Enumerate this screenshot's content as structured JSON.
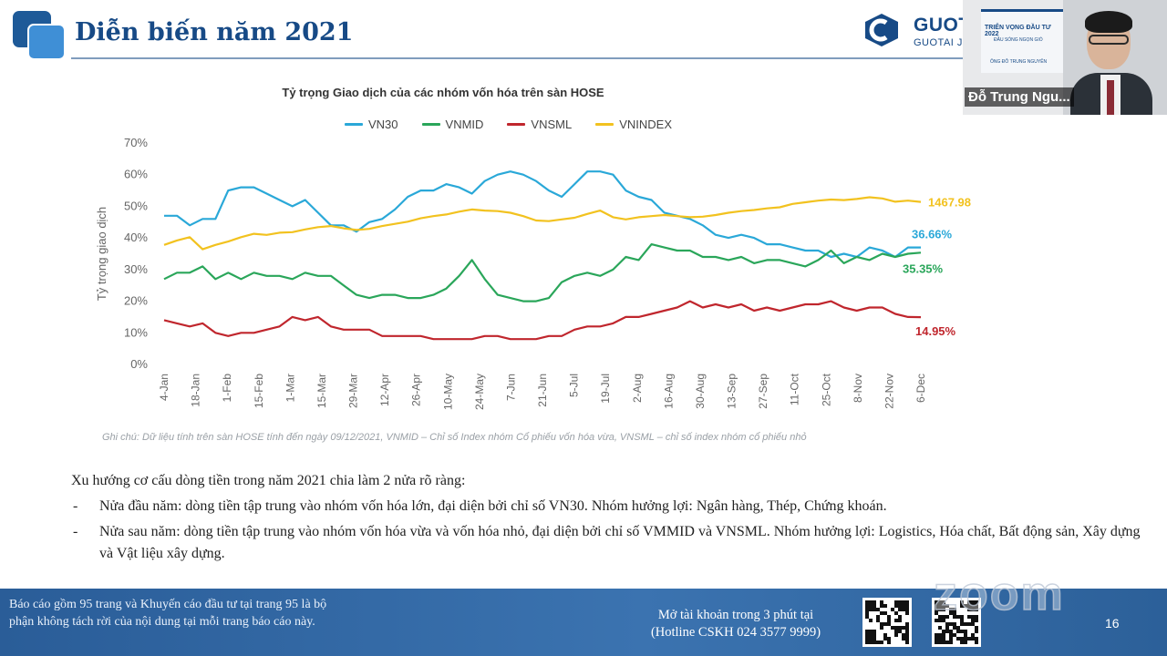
{
  "slide": {
    "title": "Diễn biến năm 2021",
    "page_number": "16"
  },
  "brand": {
    "name": "GUOT",
    "sub": "GUOTAI J"
  },
  "video": {
    "participant_name": "Đỗ Trung Ngu...",
    "banner_title": "TRIỂN VỌNG ĐẦU TƯ 2022",
    "banner_sub": "ĐẦU SÓNG NGỌN GIÓ",
    "banner_host": "ÔNG ĐỖ TRUNG NGUYÊN"
  },
  "chart_data": {
    "type": "line",
    "title": "Tỷ trọng Giao dịch của các nhóm vốn hóa trên sàn HOSE",
    "ylabel": "Tỷ trọng giao dịch",
    "xlabel": "",
    "ylim": [
      0,
      70
    ],
    "ylim_right": [
      0,
      2000
    ],
    "yticks": [
      "0%",
      "10%",
      "20%",
      "30%",
      "40%",
      "50%",
      "60%",
      "70%"
    ],
    "x_ticks": [
      "4-Jan",
      "18-Jan",
      "1-Feb",
      "15-Feb",
      "1-Mar",
      "15-Mar",
      "29-Mar",
      "12-Apr",
      "26-Apr",
      "10-May",
      "24-May",
      "7-Jun",
      "21-Jun",
      "5-Jul",
      "19-Jul",
      "2-Aug",
      "16-Aug",
      "30-Aug",
      "13-Sep",
      "27-Sep",
      "11-Oct",
      "25-Oct",
      "8-Nov",
      "22-Nov",
      "6-Dec"
    ],
    "legend_position": "top",
    "grid": false,
    "series": [
      {
        "name": "VN30",
        "color": "#2aa8d8",
        "axis": "left",
        "values": [
          47,
          47,
          44,
          46,
          46,
          55,
          56,
          56,
          54,
          52,
          50,
          52,
          48,
          44,
          44,
          42,
          45,
          46,
          49,
          53,
          55,
          55,
          57,
          56,
          54,
          58,
          60,
          61,
          60,
          58,
          55,
          53,
          57,
          61,
          61,
          60,
          55,
          53,
          52,
          48,
          47,
          46,
          44,
          41,
          40,
          41,
          40,
          38,
          38,
          37,
          36,
          36,
          34,
          35,
          34,
          37,
          36,
          34,
          37,
          37
        ]
      },
      {
        "name": "VNMID",
        "color": "#2aa65a",
        "axis": "left",
        "values": [
          27,
          29,
          29,
          31,
          27,
          29,
          27,
          29,
          28,
          28,
          27,
          29,
          28,
          28,
          25,
          22,
          21,
          22,
          22,
          21,
          21,
          22,
          24,
          28,
          33,
          27,
          22,
          21,
          20,
          20,
          21,
          26,
          28,
          29,
          28,
          30,
          34,
          33,
          38,
          37,
          36,
          36,
          34,
          34,
          33,
          34,
          32,
          33,
          33,
          32,
          31,
          33,
          36,
          32,
          34,
          33,
          35,
          34,
          35,
          35.35
        ]
      },
      {
        "name": "VNSML",
        "color": "#c0262d",
        "axis": "left",
        "values": [
          14,
          13,
          12,
          13,
          10,
          9,
          10,
          10,
          11,
          12,
          15,
          14,
          15,
          12,
          11,
          11,
          11,
          9,
          9,
          9,
          9,
          8,
          8,
          8,
          8,
          9,
          9,
          8,
          8,
          8,
          9,
          9,
          11,
          12,
          12,
          13,
          15,
          15,
          16,
          17,
          18,
          20,
          18,
          19,
          18,
          19,
          17,
          18,
          17,
          18,
          19,
          19,
          20,
          18,
          17,
          18,
          18,
          16,
          15,
          14.95
        ]
      },
      {
        "name": "VNINDEX",
        "color": "#f2c21f",
        "axis": "right",
        "values": [
          1080,
          1120,
          1150,
          1040,
          1080,
          1110,
          1150,
          1180,
          1170,
          1190,
          1195,
          1220,
          1240,
          1250,
          1230,
          1215,
          1225,
          1250,
          1270,
          1290,
          1320,
          1340,
          1355,
          1380,
          1400,
          1390,
          1385,
          1370,
          1340,
          1300,
          1295,
          1310,
          1325,
          1360,
          1390,
          1330,
          1310,
          1330,
          1340,
          1350,
          1340,
          1330,
          1335,
          1350,
          1370,
          1385,
          1395,
          1410,
          1420,
          1450,
          1465,
          1480,
          1490,
          1485,
          1495,
          1510,
          1500,
          1470,
          1480,
          1467.98
        ]
      }
    ],
    "end_labels": {
      "VNINDEX": "1467.98",
      "VN30": "36.66%",
      "VNMID": "35.35%",
      "VNSML": "14.95%"
    }
  },
  "chart_note": "Ghi chú: Dữ liệu tính trên sàn HOSE tính đến ngày 09/12/2021, VNMID – Chỉ số Index nhóm Cổ phiếu vốn hóa vừa, VNSML – chỉ số index nhóm cổ phiếu nhỏ",
  "body": {
    "intro": "Xu hướng cơ cấu dòng tiền trong năm 2021 chia làm 2 nửa rõ ràng:",
    "bullets": [
      "Nửa đầu năm: dòng tiền tập trung vào nhóm vốn hóa lớn, đại diện bởi chỉ số VN30. Nhóm hưởng lợi: Ngân hàng, Thép, Chứng khoán.",
      "Nửa sau năm: dòng tiền tập trung vào nhóm vốn hóa vừa và vốn hóa nhỏ, đại diện bởi chỉ số VMMID và VNSML. Nhóm hưởng lợi: Logistics, Hóa chất, Bất động sản, Xây dựng và Vật liệu xây dựng."
    ],
    "bullet_marker": "-"
  },
  "footer": {
    "disclaimer": "Báo cáo gồm 95 trang và Khuyến cáo đầu tư tại trang 95 là bộ phận không tách rời của nội dung tại mỗi trang báo cáo này.",
    "cta_line1": "Mở tài khoản trong 3 phút tại",
    "cta_line2": "(Hotline CSKH 024 3577 9999)",
    "watermark": "zoom"
  },
  "colors": {
    "title_blue": "#174a86",
    "footer_blue": "#3b73b0"
  }
}
